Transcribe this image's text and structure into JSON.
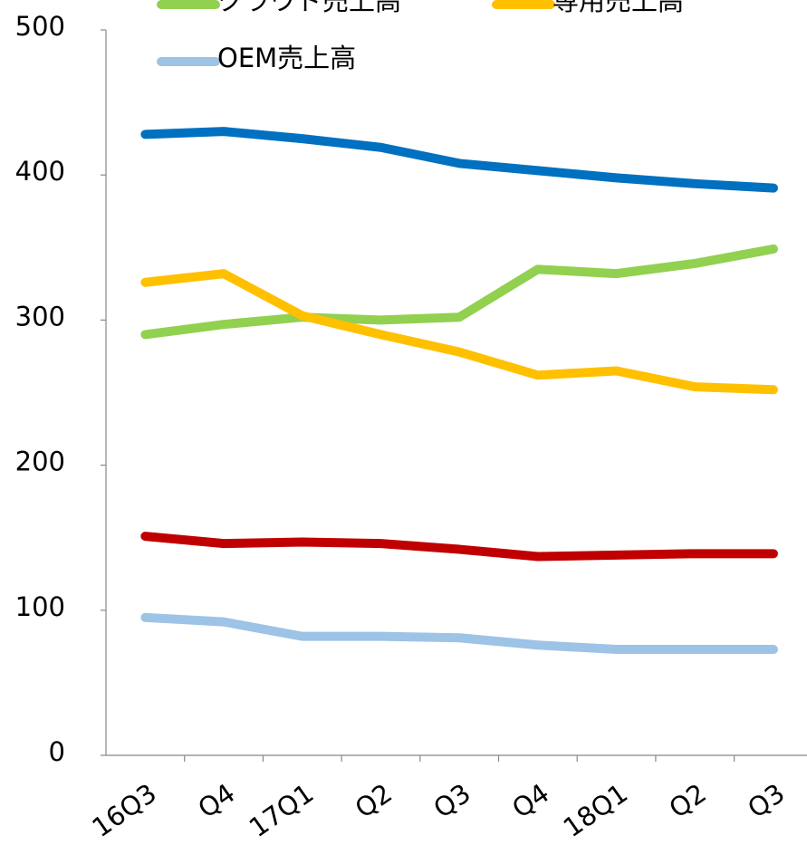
{
  "chart_data": {
    "type": "line",
    "categories": [
      "16Q3",
      "Q4",
      "17Q1",
      "Q2",
      "Q3",
      "Q4",
      "18Q1",
      "Q2",
      "Q3"
    ],
    "series": [
      {
        "color": "#0070c0",
        "values": [
          428,
          430,
          425,
          419,
          408,
          403,
          398,
          394,
          391
        ]
      },
      {
        "name": "クラウド売上高",
        "color": "#92d050",
        "values": [
          290,
          297,
          302,
          300,
          302,
          335,
          332,
          339,
          349
        ]
      },
      {
        "name": "専用売上高",
        "color": "#ffc000",
        "values": [
          326,
          332,
          303,
          290,
          278,
          262,
          265,
          254,
          252
        ]
      },
      {
        "color": "#c00000",
        "values": [
          151,
          146,
          147,
          146,
          142,
          137,
          138,
          139,
          139
        ]
      },
      {
        "name": "OEM売上高",
        "color": "#9dc3e6",
        "values": [
          95,
          92,
          82,
          82,
          81,
          76,
          73,
          73,
          73
        ]
      }
    ],
    "ylim": [
      0,
      500
    ],
    "yticks": [
      0,
      100,
      200,
      300,
      400,
      500
    ]
  }
}
